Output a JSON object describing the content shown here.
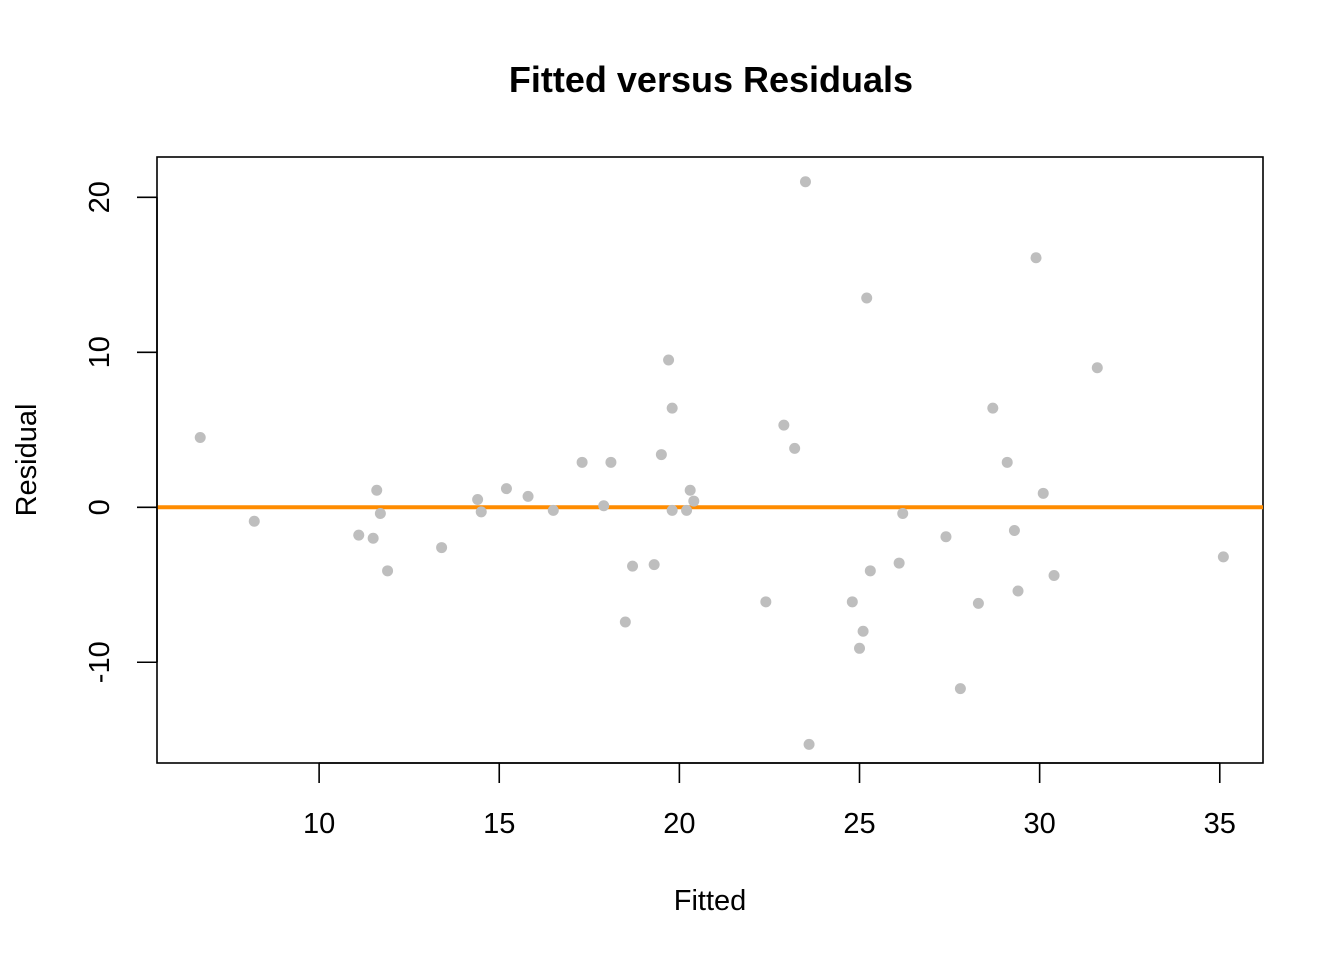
{
  "chart_data": {
    "type": "scatter",
    "title": "Fitted versus Residuals",
    "xlabel": "Fitted",
    "ylabel": "Residual",
    "xlim": [
      5.5,
      36.2
    ],
    "ylim": [
      -16.5,
      22.6
    ],
    "xticks": [
      10,
      15,
      20,
      25,
      30,
      35
    ],
    "yticks": [
      -10,
      0,
      10,
      20
    ],
    "grid": false,
    "legend": "none",
    "point_color": "#bebebe",
    "reference_line": {
      "y": 0,
      "color": "#ff8c00"
    },
    "points": [
      {
        "x": 6.7,
        "y": 4.5
      },
      {
        "x": 8.2,
        "y": -0.9
      },
      {
        "x": 11.1,
        "y": -1.8
      },
      {
        "x": 11.5,
        "y": -2.0
      },
      {
        "x": 11.6,
        "y": 1.1
      },
      {
        "x": 11.7,
        "y": -0.4
      },
      {
        "x": 11.9,
        "y": -4.1
      },
      {
        "x": 13.4,
        "y": -2.6
      },
      {
        "x": 14.4,
        "y": 0.5
      },
      {
        "x": 14.5,
        "y": -0.3
      },
      {
        "x": 15.2,
        "y": 1.2
      },
      {
        "x": 15.8,
        "y": 0.7
      },
      {
        "x": 16.5,
        "y": -0.2
      },
      {
        "x": 17.3,
        "y": 2.9
      },
      {
        "x": 17.9,
        "y": 0.1
      },
      {
        "x": 18.1,
        "y": 2.9
      },
      {
        "x": 18.5,
        "y": -7.4
      },
      {
        "x": 18.7,
        "y": -3.8
      },
      {
        "x": 19.3,
        "y": -3.7
      },
      {
        "x": 19.5,
        "y": 3.4
      },
      {
        "x": 19.7,
        "y": 9.5
      },
      {
        "x": 19.8,
        "y": 6.4
      },
      {
        "x": 19.8,
        "y": -0.2
      },
      {
        "x": 20.2,
        "y": -0.2
      },
      {
        "x": 20.3,
        "y": 1.1
      },
      {
        "x": 20.4,
        "y": 0.4
      },
      {
        "x": 22.4,
        "y": -6.1
      },
      {
        "x": 22.9,
        "y": 5.3
      },
      {
        "x": 23.2,
        "y": 3.8
      },
      {
        "x": 23.5,
        "y": 21.0
      },
      {
        "x": 23.6,
        "y": -15.3
      },
      {
        "x": 24.8,
        "y": -6.1
      },
      {
        "x": 25.0,
        "y": -9.1
      },
      {
        "x": 25.1,
        "y": -8.0
      },
      {
        "x": 25.2,
        "y": 13.5
      },
      {
        "x": 25.3,
        "y": -4.1
      },
      {
        "x": 26.1,
        "y": -3.6
      },
      {
        "x": 26.2,
        "y": -0.4
      },
      {
        "x": 27.4,
        "y": -1.9
      },
      {
        "x": 27.8,
        "y": -11.7
      },
      {
        "x": 28.3,
        "y": -6.2
      },
      {
        "x": 28.7,
        "y": 6.4
      },
      {
        "x": 29.1,
        "y": 2.9
      },
      {
        "x": 29.3,
        "y": -1.5
      },
      {
        "x": 29.4,
        "y": -5.4
      },
      {
        "x": 29.9,
        "y": 16.1
      },
      {
        "x": 30.1,
        "y": 0.9
      },
      {
        "x": 30.4,
        "y": -4.4
      },
      {
        "x": 31.6,
        "y": 9.0
      },
      {
        "x": 35.1,
        "y": -3.2
      }
    ]
  }
}
